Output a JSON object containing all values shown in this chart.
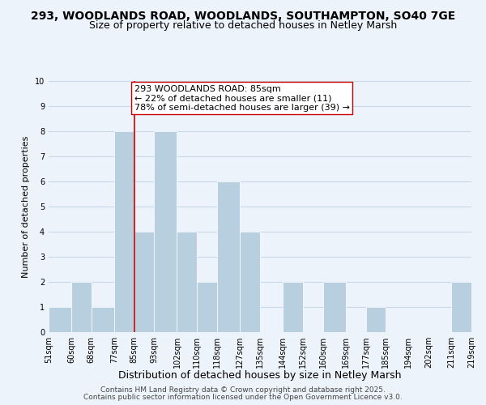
{
  "title": "293, WOODLANDS ROAD, WOODLANDS, SOUTHAMPTON, SO40 7GE",
  "subtitle": "Size of property relative to detached houses in Netley Marsh",
  "xlabel": "Distribution of detached houses by size in Netley Marsh",
  "ylabel": "Number of detached properties",
  "bin_edges": [
    51,
    60,
    68,
    77,
    85,
    93,
    102,
    110,
    118,
    127,
    135,
    144,
    152,
    160,
    169,
    177,
    185,
    194,
    202,
    211,
    219
  ],
  "bar_heights": [
    1,
    2,
    1,
    8,
    4,
    8,
    4,
    2,
    6,
    4,
    0,
    2,
    0,
    2,
    0,
    1,
    0,
    0,
    0,
    2
  ],
  "bar_color": "#b8cfe0",
  "bar_edge_color": "#ffffff",
  "grid_color": "#c8d8e8",
  "background_color": "#edf3fa",
  "vline_x": 85,
  "vline_color": "#cc0000",
  "annotation_text": "293 WOODLANDS ROAD: 85sqm\n← 22% of detached houses are smaller (11)\n78% of semi-detached houses are larger (39) →",
  "annotation_box_color": "#ffffff",
  "annotation_box_edge": "#cc0000",
  "annotation_fontsize": 8,
  "ylim": [
    0,
    10
  ],
  "yticks": [
    0,
    1,
    2,
    3,
    4,
    5,
    6,
    7,
    8,
    9,
    10
  ],
  "tick_labels": [
    "51sqm",
    "60sqm",
    "68sqm",
    "77sqm",
    "85sqm",
    "93sqm",
    "102sqm",
    "110sqm",
    "118sqm",
    "127sqm",
    "135sqm",
    "144sqm",
    "152sqm",
    "160sqm",
    "169sqm",
    "177sqm",
    "185sqm",
    "194sqm",
    "202sqm",
    "211sqm",
    "219sqm"
  ],
  "footer_line1": "Contains HM Land Registry data © Crown copyright and database right 2025.",
  "footer_line2": "Contains public sector information licensed under the Open Government Licence v3.0.",
  "title_fontsize": 10,
  "subtitle_fontsize": 9,
  "xlabel_fontsize": 9,
  "ylabel_fontsize": 8,
  "tick_fontsize": 7,
  "footer_fontsize": 6.5
}
